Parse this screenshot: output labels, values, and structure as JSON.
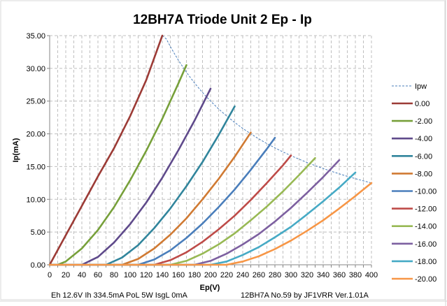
{
  "chart_data": {
    "type": "line",
    "title": "12BH7A Triode Unit 2 Ep - Ip",
    "xlabel": "Ep(V)",
    "ylabel": "Ip(mA)",
    "xlim": [
      0,
      400
    ],
    "ylim": [
      0,
      35
    ],
    "x_ticks": [
      "0",
      "20",
      "40",
      "60",
      "80",
      "100",
      "120",
      "140",
      "160",
      "180",
      "200",
      "220",
      "240",
      "260",
      "280",
      "300",
      "320",
      "340",
      "360",
      "380",
      "400"
    ],
    "y_ticks": [
      "0.00",
      "5.00",
      "10.00",
      "15.00",
      "20.00",
      "25.00",
      "30.00",
      "35.00"
    ],
    "grid": true,
    "legend_position": "right",
    "plate_dissipation": {
      "name": "Ipw",
      "watts": 5,
      "x_range": [
        140,
        400
      ],
      "color": "#4A7EBB",
      "style": "dashed"
    },
    "series": [
      {
        "name": "0.00",
        "color": "#9C3B36",
        "points": [
          [
            0,
            0
          ],
          [
            20,
            4.5
          ],
          [
            40,
            9
          ],
          [
            60,
            13.5
          ],
          [
            80,
            17.8
          ],
          [
            100,
            22.7
          ],
          [
            120,
            28.2
          ],
          [
            140,
            35
          ]
        ]
      },
      {
        "name": "-2.00",
        "color": "#77A03A",
        "points": [
          [
            0,
            0
          ],
          [
            10,
            0
          ],
          [
            20,
            0.5
          ],
          [
            40,
            2.5
          ],
          [
            60,
            5.3
          ],
          [
            80,
            8.8
          ],
          [
            100,
            12.9
          ],
          [
            120,
            17.4
          ],
          [
            140,
            22.3
          ],
          [
            160,
            27.7
          ],
          [
            170,
            30.5
          ]
        ]
      },
      {
        "name": "-4.00",
        "color": "#5F4A8B",
        "points": [
          [
            0,
            0
          ],
          [
            40,
            0
          ],
          [
            60,
            1.2
          ],
          [
            80,
            3.4
          ],
          [
            100,
            6.2
          ],
          [
            120,
            9.5
          ],
          [
            140,
            13.3
          ],
          [
            160,
            17.5
          ],
          [
            180,
            22.0
          ],
          [
            200,
            26.9
          ]
        ]
      },
      {
        "name": "-6.00",
        "color": "#31859C",
        "points": [
          [
            0,
            0
          ],
          [
            70,
            0
          ],
          [
            90,
            1.1
          ],
          [
            110,
            3.0
          ],
          [
            130,
            5.6
          ],
          [
            150,
            8.6
          ],
          [
            170,
            12.0
          ],
          [
            190,
            15.7
          ],
          [
            210,
            19.8
          ],
          [
            230,
            24.2
          ]
        ]
      },
      {
        "name": "-8.00",
        "color": "#D07A33",
        "points": [
          [
            0,
            0
          ],
          [
            90,
            0
          ],
          [
            110,
            0.9
          ],
          [
            130,
            2.5
          ],
          [
            150,
            4.6
          ],
          [
            170,
            7.1
          ],
          [
            190,
            10.0
          ],
          [
            210,
            13.1
          ],
          [
            230,
            16.5
          ],
          [
            250,
            20.2
          ]
        ]
      },
      {
        "name": "-10.00",
        "color": "#4A7EBB",
        "points": [
          [
            0,
            0
          ],
          [
            110,
            0
          ],
          [
            130,
            0.8
          ],
          [
            150,
            2.2
          ],
          [
            170,
            4.1
          ],
          [
            190,
            6.3
          ],
          [
            210,
            8.8
          ],
          [
            230,
            11.5
          ],
          [
            250,
            14.5
          ],
          [
            270,
            17.7
          ],
          [
            280,
            19.4
          ]
        ]
      },
      {
        "name": "-12.00",
        "color": "#BE4B48",
        "points": [
          [
            0,
            0
          ],
          [
            130,
            0
          ],
          [
            150,
            0.7
          ],
          [
            170,
            1.9
          ],
          [
            190,
            3.5
          ],
          [
            210,
            5.4
          ],
          [
            230,
            7.5
          ],
          [
            250,
            9.9
          ],
          [
            270,
            12.5
          ],
          [
            290,
            15.2
          ],
          [
            300,
            16.7
          ]
        ]
      },
      {
        "name": "-14.00",
        "color": "#98B954",
        "points": [
          [
            0,
            0
          ],
          [
            150,
            0
          ],
          [
            170,
            0.6
          ],
          [
            190,
            1.7
          ],
          [
            210,
            3.1
          ],
          [
            230,
            4.8
          ],
          [
            250,
            6.8
          ],
          [
            270,
            8.9
          ],
          [
            290,
            11.2
          ],
          [
            310,
            13.7
          ],
          [
            330,
            16.3
          ]
        ]
      },
      {
        "name": "-16.00",
        "color": "#7D60A0",
        "points": [
          [
            0,
            0
          ],
          [
            180,
            0
          ],
          [
            200,
            0.6
          ],
          [
            220,
            1.7
          ],
          [
            240,
            3.1
          ],
          [
            260,
            4.7
          ],
          [
            280,
            6.6
          ],
          [
            300,
            8.7
          ],
          [
            320,
            11.0
          ],
          [
            340,
            13.4
          ],
          [
            360,
            16.0
          ]
        ]
      },
      {
        "name": "-18.00",
        "color": "#46AAC5",
        "points": [
          [
            0,
            0
          ],
          [
            200,
            0
          ],
          [
            220,
            0.5
          ],
          [
            240,
            1.5
          ],
          [
            260,
            2.7
          ],
          [
            280,
            4.2
          ],
          [
            300,
            5.8
          ],
          [
            320,
            7.7
          ],
          [
            340,
            9.7
          ],
          [
            360,
            11.8
          ],
          [
            380,
            14.1
          ]
        ]
      },
      {
        "name": "-20.00",
        "color": "#F79646",
        "points": [
          [
            0,
            0
          ],
          [
            220,
            0
          ],
          [
            240,
            0.5
          ],
          [
            260,
            1.3
          ],
          [
            280,
            2.4
          ],
          [
            300,
            3.7
          ],
          [
            320,
            5.2
          ],
          [
            340,
            6.8
          ],
          [
            360,
            8.6
          ],
          [
            380,
            10.5
          ],
          [
            400,
            12.5
          ]
        ]
      }
    ]
  },
  "footer": {
    "conditions": "Eh  12.6V Ih  334.5mA PoL  5W IsgL  0mA",
    "credit": "12BH7A No.59  by JF1VRR Ver.1.01A"
  }
}
